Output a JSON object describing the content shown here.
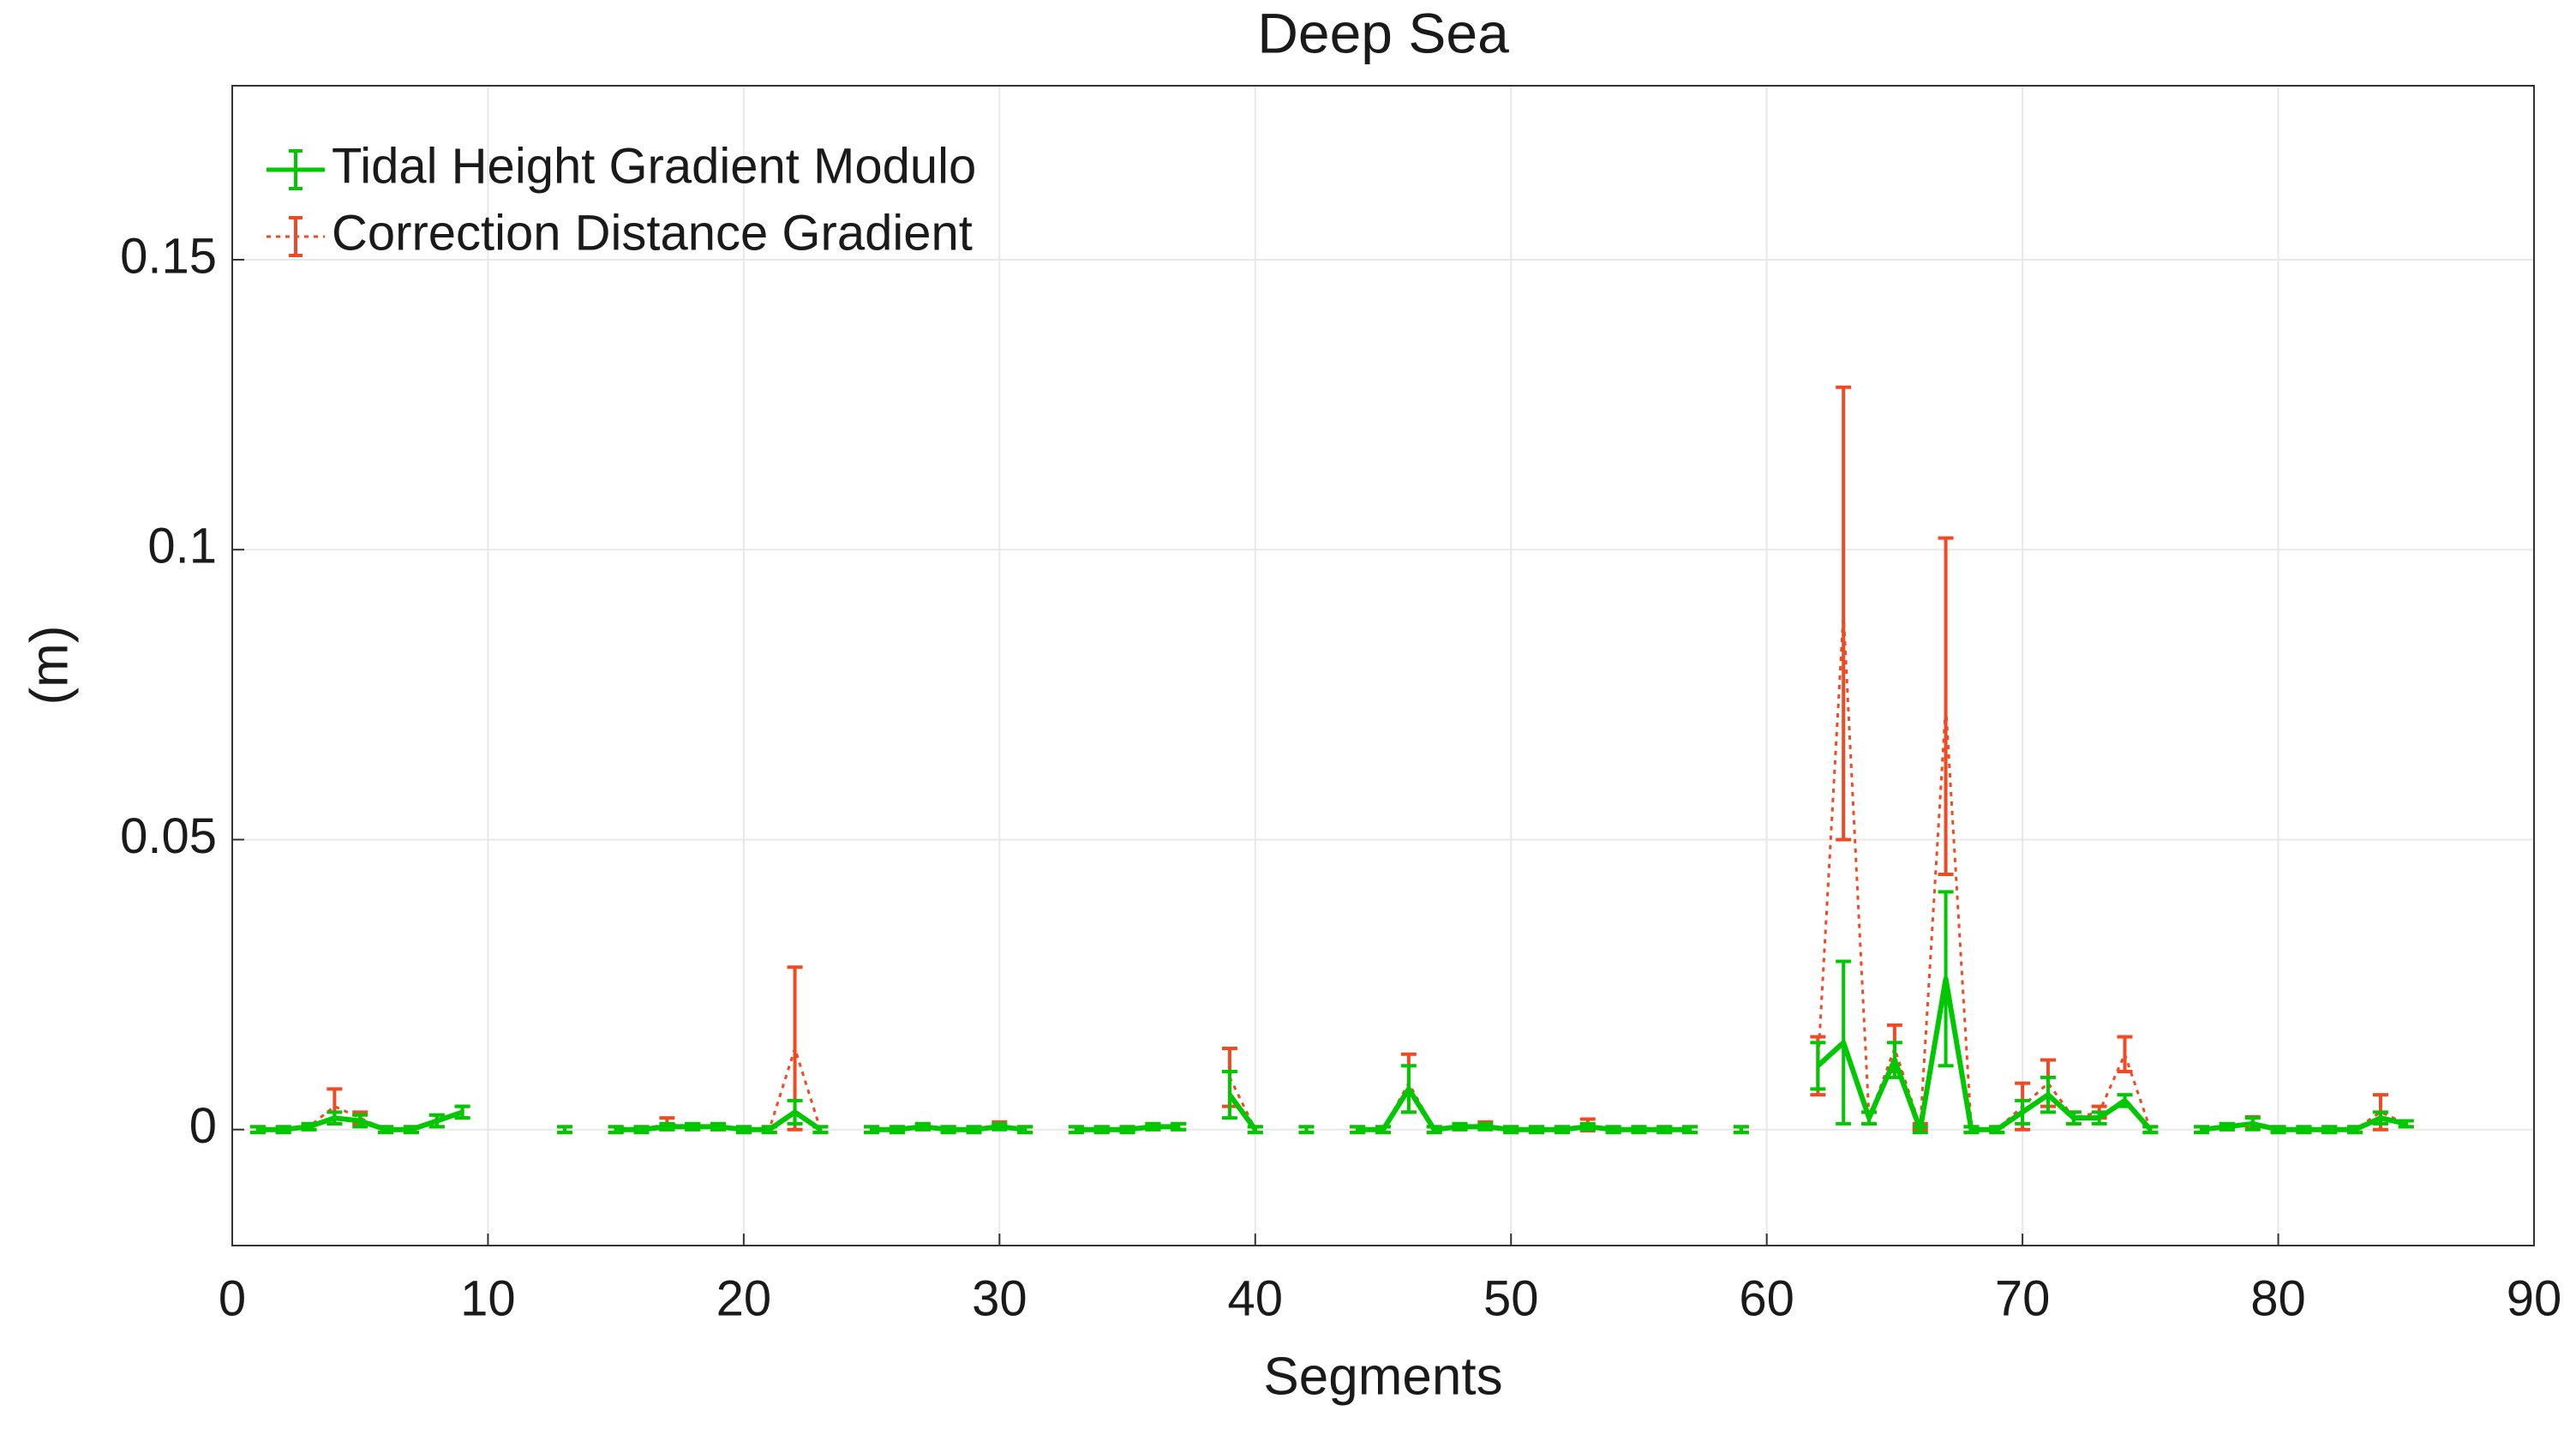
{
  "chart_data": {
    "type": "errorbar-line",
    "title": "Deep Sea",
    "xlabel": "Segments",
    "ylabel": "(m)",
    "xlim": [
      0,
      90
    ],
    "xticks": [
      0,
      10,
      20,
      30,
      40,
      50,
      60,
      70,
      80,
      90
    ],
    "ylim": [
      -0.02,
      0.18
    ],
    "yticks": [
      0,
      0.05,
      0.1,
      0.15
    ],
    "grid": true,
    "legend_location": "northwest",
    "x": [
      1,
      2,
      3,
      4,
      5,
      6,
      7,
      8,
      9,
      10,
      11,
      12,
      13,
      14,
      15,
      16,
      17,
      18,
      19,
      20,
      21,
      22,
      23,
      24,
      25,
      26,
      27,
      28,
      29,
      30,
      31,
      32,
      33,
      34,
      35,
      36,
      37,
      38,
      39,
      40,
      41,
      42,
      43,
      44,
      45,
      46,
      47,
      48,
      49,
      50,
      51,
      52,
      53,
      54,
      55,
      56,
      57,
      58,
      59,
      60,
      61,
      62,
      63,
      64,
      65,
      66,
      67,
      68,
      69,
      70,
      71,
      72,
      73,
      74,
      75,
      76,
      77,
      78,
      79,
      80,
      81,
      82,
      83,
      84,
      85
    ],
    "series": [
      {
        "name": "Tidal Height Gradient Modulo",
        "color": "#00c800",
        "linestyle": "solid",
        "values": [
          0,
          0,
          0.0005,
          0.002,
          0.0015,
          0,
          0,
          0.0015,
          0.003,
          null,
          null,
          null,
          0,
          null,
          0,
          0,
          0.0005,
          0.0005,
          0.0005,
          0,
          0,
          0.003,
          0,
          null,
          0,
          0,
          0.0005,
          0,
          0,
          0.0005,
          0,
          null,
          0,
          0,
          0,
          0.0005,
          0.0005,
          null,
          0.006,
          0,
          null,
          0,
          null,
          0,
          0,
          0.007,
          0,
          0.0005,
          0.0005,
          0,
          0,
          0,
          0.0005,
          0,
          0,
          0,
          0,
          null,
          0,
          null,
          null,
          0.011,
          0.015,
          0.002,
          0.012,
          0,
          0.026,
          0,
          0,
          0.003,
          0.006,
          0.002,
          0.002,
          0.005,
          0,
          null,
          0,
          0.0005,
          0.001,
          0,
          0,
          0,
          0,
          0.002,
          0.001
        ],
        "errors": [
          0.0005,
          0.0005,
          0.0005,
          0.001,
          0.001,
          0.0005,
          0.0005,
          0.001,
          0.001,
          null,
          null,
          null,
          0.0005,
          null,
          0.0005,
          0.0005,
          0.0005,
          0.0005,
          0.0005,
          0.0005,
          0.0005,
          0.002,
          0.0005,
          null,
          0.0005,
          0.0005,
          0.0005,
          0.0005,
          0.0005,
          0.0005,
          0.0005,
          null,
          0.0005,
          0.0005,
          0.0005,
          0.0005,
          0.0005,
          null,
          0.004,
          0.0005,
          null,
          0.0005,
          null,
          0.0005,
          0.0005,
          0.004,
          0.0005,
          0.0005,
          0.0005,
          0.0005,
          0.0005,
          0.0005,
          0.0005,
          0.0005,
          0.0005,
          0.0005,
          0.0005,
          null,
          0.0005,
          null,
          null,
          0.004,
          0.014,
          0.001,
          0.003,
          0.0005,
          0.015,
          0.0005,
          0.0005,
          0.002,
          0.003,
          0.001,
          0.001,
          0.001,
          0.0005,
          null,
          0.0005,
          0.0005,
          0.001,
          0.0005,
          0.0005,
          0.0005,
          0.0005,
          0.001,
          0.0005
        ]
      },
      {
        "name": "Correction Distance Gradient",
        "color": "#f04a24",
        "linestyle": "dotted",
        "values": [
          0,
          0,
          0.0005,
          0.004,
          0.002,
          0,
          0,
          0.0015,
          0.003,
          null,
          null,
          null,
          0,
          null,
          0,
          0,
          0.001,
          0.0005,
          0.0005,
          0,
          0,
          0.014,
          0,
          null,
          0,
          0,
          0.0005,
          0,
          0,
          0.0008,
          0,
          null,
          0,
          0,
          0,
          0.0005,
          0.0005,
          null,
          0.009,
          0,
          null,
          0,
          null,
          0,
          0,
          0.008,
          0,
          0.0005,
          0.0008,
          0,
          0,
          0,
          0.0008,
          0,
          0,
          0,
          0,
          null,
          0,
          null,
          null,
          0.011,
          0.089,
          0.002,
          0.014,
          0.0005,
          0.073,
          0,
          0,
          0.004,
          0.008,
          0.002,
          0.003,
          0.013,
          0,
          null,
          0,
          0.0005,
          0.0012,
          0,
          0,
          0,
          0,
          0.003,
          0.001
        ],
        "errors": [
          0.0005,
          0.0005,
          0.0005,
          0.003,
          0.001,
          0.0005,
          0.0005,
          0.001,
          0.001,
          null,
          null,
          null,
          0.0005,
          null,
          0.0005,
          0.0005,
          0.001,
          0.0005,
          0.0005,
          0.0005,
          0.0005,
          0.014,
          0.0005,
          null,
          0.0005,
          0.0005,
          0.0005,
          0.0005,
          0.0005,
          0.0005,
          0.0005,
          null,
          0.0005,
          0.0005,
          0.0005,
          0.0005,
          0.0005,
          null,
          0.005,
          0.0005,
          null,
          0.0005,
          null,
          0.0005,
          0.0005,
          0.005,
          0.0005,
          0.0005,
          0.0005,
          0.0005,
          0.0005,
          0.0005,
          0.001,
          0.0005,
          0.0005,
          0.0005,
          0.0005,
          null,
          0.0005,
          null,
          null,
          0.005,
          0.039,
          0.001,
          0.004,
          0.0005,
          0.029,
          0.0005,
          0.0005,
          0.004,
          0.004,
          0.001,
          0.001,
          0.003,
          0.0005,
          null,
          0.0005,
          0.0005,
          0.001,
          0.0005,
          0.0005,
          0.0005,
          0.0005,
          0.003,
          0.0005
        ]
      }
    ]
  }
}
